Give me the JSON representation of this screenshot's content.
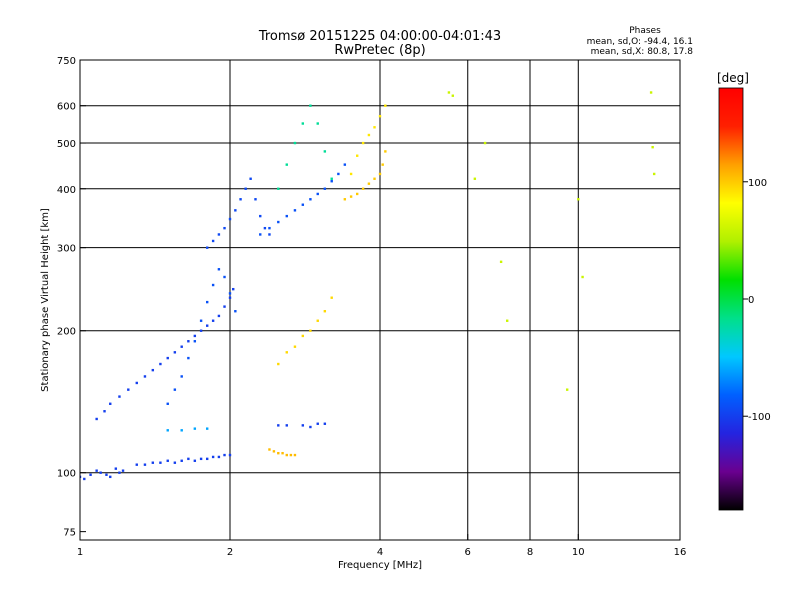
{
  "chart_data": {
    "type": "scatter",
    "title": "Tromsø 20151225 04:00:00-04:01:43",
    "subtitle": "RwPretec (8p)",
    "stats": {
      "label": "Phases",
      "line_o": "mean, sd,O: -94.4, 16.1",
      "line_x": "mean, sd,X:  80.8, 17.8"
    },
    "xlabel": "Frequency [MHz]",
    "ylabel": "Stationary phase Virtual Height [km]",
    "xscale": "log",
    "yscale": "log",
    "xlim": [
      1,
      16
    ],
    "ylim": [
      72,
      750
    ],
    "xticks": [
      {
        "value": 1,
        "label": "1"
      },
      {
        "value": 2,
        "label": "2"
      },
      {
        "value": 4,
        "label": "4"
      },
      {
        "value": 6,
        "label": "6"
      },
      {
        "value": 8,
        "label": "8"
      },
      {
        "value": 10,
        "label": "10"
      },
      {
        "value": 16,
        "label": "16"
      }
    ],
    "yticks": [
      {
        "value": 75,
        "label": "75"
      },
      {
        "value": 100,
        "label": "100"
      },
      {
        "value": 200,
        "label": "200"
      },
      {
        "value": 300,
        "label": "300"
      },
      {
        "value": 400,
        "label": "400"
      },
      {
        "value": 500,
        "label": "500"
      },
      {
        "value": 600,
        "label": "600"
      },
      {
        "value": 750,
        "label": "750"
      }
    ],
    "grid": true,
    "vgrid": [
      2,
      4,
      6,
      8,
      10
    ],
    "hgrid": [
      100,
      200,
      300,
      400,
      500,
      600
    ],
    "colorbar": {
      "label": "[deg]",
      "range": [
        -180,
        180
      ],
      "ticks": [
        {
          "value": 100,
          "label": "100"
        },
        {
          "value": 0,
          "label": "0"
        },
        {
          "value": -100,
          "label": "-100"
        }
      ],
      "stops": [
        "#000000",
        "#6a0090",
        "#2424e0",
        "#0060ff",
        "#00c8ff",
        "#00e08a",
        "#00e000",
        "#b0f000",
        "#ffff00",
        "#ffa000",
        "#ff2000",
        "#ff0000"
      ]
    },
    "series": [
      {
        "x": [
          1.0,
          1.02,
          1.05,
          1.08,
          1.1,
          1.13,
          1.15,
          1.18,
          1.2,
          1.22
        ],
        "y": [
          98,
          97,
          99,
          101,
          100,
          99,
          98,
          102,
          100,
          101
        ],
        "phase": -100
      },
      {
        "x": [
          1.3,
          1.35,
          1.4,
          1.45,
          1.5,
          1.55,
          1.6,
          1.65,
          1.7,
          1.75,
          1.8,
          1.85,
          1.9,
          1.95,
          2.0
        ],
        "y": [
          104,
          104,
          105,
          105,
          106,
          105,
          106,
          107,
          106,
          107,
          107,
          108,
          108,
          109,
          109
        ],
        "phase": -100
      },
      {
        "x": [
          1.08,
          1.12,
          1.15,
          1.2,
          1.25,
          1.3,
          1.35,
          1.4,
          1.45,
          1.5,
          1.55,
          1.6,
          1.65,
          1.7,
          1.75,
          1.8,
          1.85,
          1.9,
          1.95,
          2.0,
          2.03
        ],
        "y": [
          130,
          135,
          140,
          145,
          150,
          155,
          160,
          165,
          170,
          175,
          180,
          185,
          190,
          195,
          200,
          205,
          210,
          215,
          225,
          235,
          245
        ],
        "phase": -100
      },
      {
        "x": [
          1.5,
          1.55,
          1.6,
          1.65,
          1.7,
          1.75,
          1.8,
          1.85,
          1.9,
          1.95,
          2.0,
          2.05
        ],
        "y": [
          140,
          150,
          160,
          175,
          190,
          210,
          230,
          250,
          270,
          260,
          240,
          220
        ],
        "phase": -90
      },
      {
        "x": [
          1.8,
          1.85,
          1.9,
          1.95,
          2.0,
          2.05,
          2.1,
          2.15,
          2.2,
          2.25,
          2.3,
          2.35,
          2.4
        ],
        "y": [
          300,
          310,
          320,
          330,
          345,
          360,
          380,
          400,
          420,
          380,
          350,
          330,
          320
        ],
        "phase": -95
      },
      {
        "x": [
          2.3,
          2.4,
          2.5,
          2.6,
          2.7,
          2.8,
          2.9,
          3.0,
          3.1,
          3.2,
          3.3,
          3.4
        ],
        "y": [
          320,
          330,
          340,
          350,
          360,
          370,
          380,
          390,
          400,
          415,
          430,
          450
        ],
        "phase": -90
      },
      {
        "x": [
          2.5,
          2.6,
          2.7,
          2.8,
          2.9,
          3.0,
          3.1,
          3.2
        ],
        "y": [
          400,
          450,
          500,
          550,
          600,
          550,
          480,
          420
        ],
        "phase": -20
      },
      {
        "x": [
          3.4,
          3.5,
          3.6,
          3.7,
          3.8,
          3.9,
          4.0,
          4.05,
          4.1
        ],
        "y": [
          380,
          385,
          390,
          400,
          410,
          420,
          430,
          450,
          480
        ],
        "phase": 100
      },
      {
        "x": [
          3.5,
          3.6,
          3.7,
          3.8,
          3.9,
          4.0,
          4.1
        ],
        "y": [
          430,
          470,
          500,
          520,
          540,
          570,
          600
        ],
        "phase": 90
      },
      {
        "x": [
          2.5,
          2.6,
          2.7,
          2.8,
          2.9,
          3.0,
          3.1,
          3.2
        ],
        "y": [
          170,
          180,
          185,
          195,
          200,
          210,
          220,
          235
        ],
        "phase": 95
      },
      {
        "x": [
          2.4,
          2.45,
          2.5,
          2.55,
          2.6,
          2.65,
          2.7
        ],
        "y": [
          112,
          111,
          110,
          110,
          109,
          109,
          109
        ],
        "phase": 105
      },
      {
        "x": [
          1.5,
          1.6,
          1.7,
          1.8
        ],
        "y": [
          123,
          123,
          124,
          124
        ],
        "phase": -60
      },
      {
        "x": [
          2.5,
          2.6,
          2.8,
          2.9,
          3.0,
          3.1
        ],
        "y": [
          126,
          126,
          126,
          125,
          127,
          127
        ],
        "phase": -100
      },
      {
        "x": [
          5.5,
          5.6,
          6.2,
          6.5,
          7.0,
          7.2,
          9.5,
          10.0,
          10.2,
          14.0,
          14.1,
          14.2
        ],
        "y": [
          640,
          630,
          420,
          500,
          280,
          210,
          150,
          380,
          260,
          640,
          490,
          430
        ],
        "phase": 60
      }
    ]
  }
}
